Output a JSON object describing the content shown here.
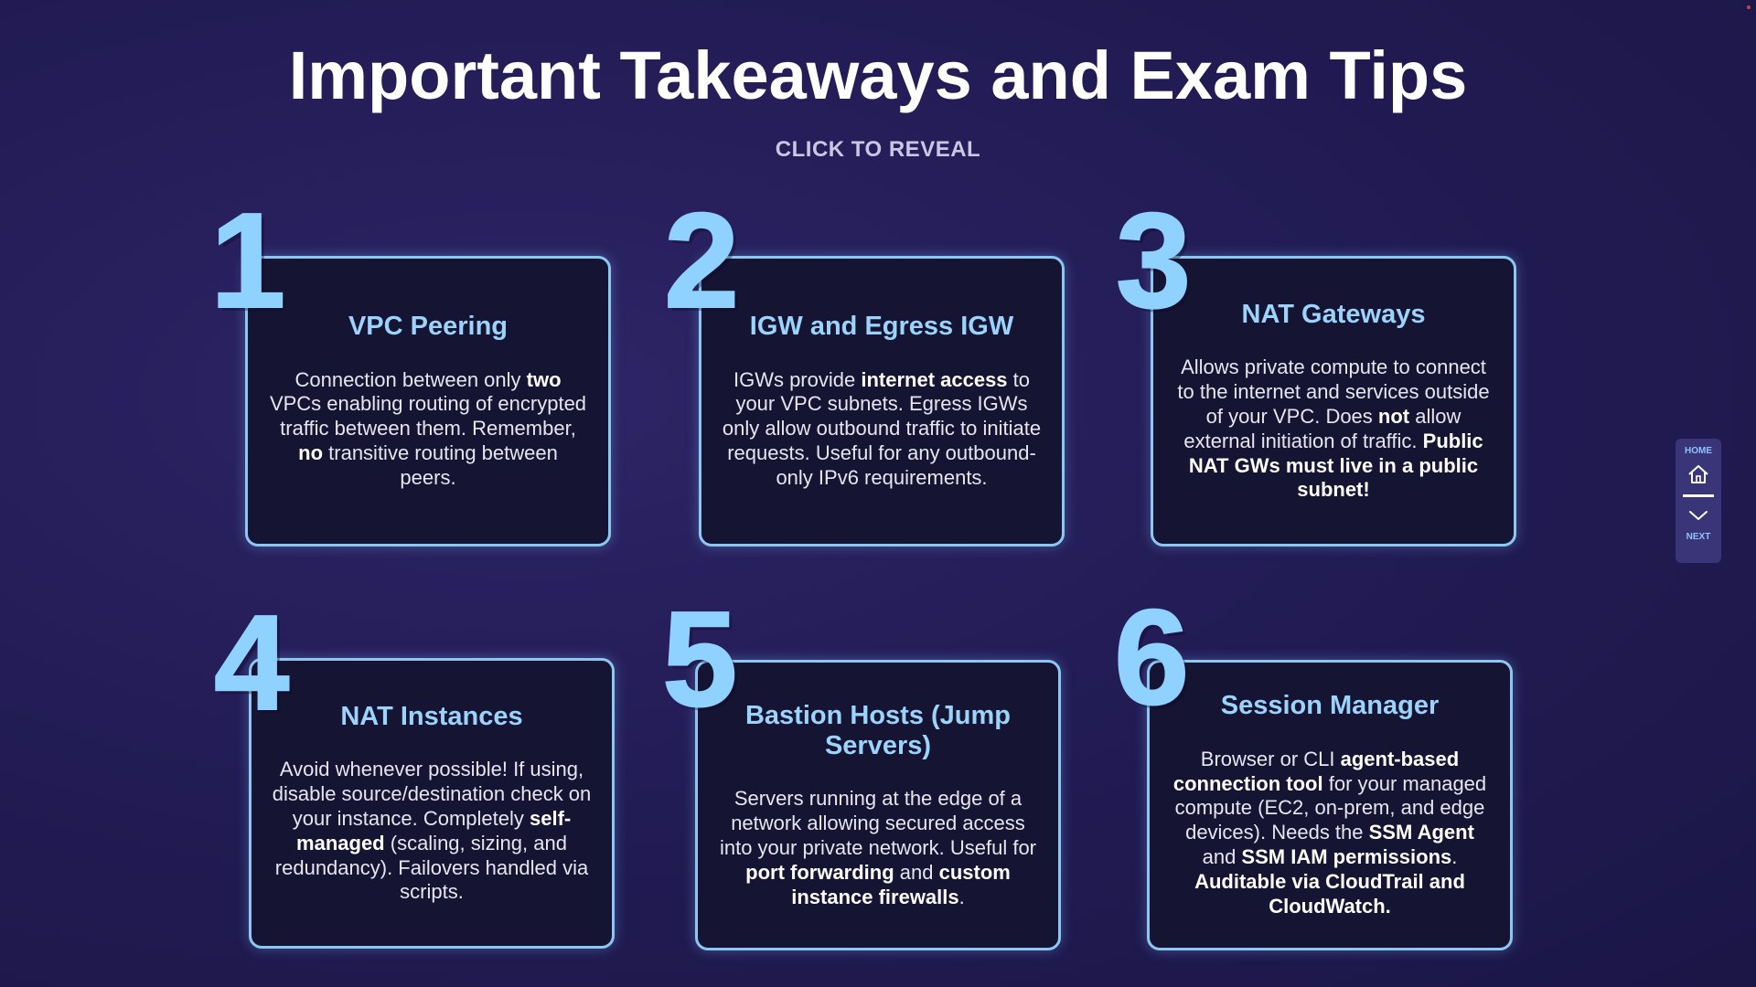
{
  "header": {
    "title": "Important Takeaways and Exam Tips",
    "subtitle": "CLICK TO REVEAL"
  },
  "cards": [
    {
      "number": "1",
      "title": "VPC Peering",
      "body": [
        {
          "t": "Connection between only "
        },
        {
          "t": "two",
          "b": true
        },
        {
          "t": " VPCs enabling routing of encrypted traffic between them. Remember, "
        },
        {
          "t": "no",
          "b": true
        },
        {
          "t": " transitive routing between peers."
        }
      ]
    },
    {
      "number": "2",
      "title": "IGW and Egress IGW",
      "body": [
        {
          "t": "IGWs provide "
        },
        {
          "t": "internet access",
          "b": true
        },
        {
          "t": " to your VPC subnets. Egress IGWs only allow outbound traffic to initiate requests. Useful for any outbound-only IPv6 requirements."
        }
      ]
    },
    {
      "number": "3",
      "title": "NAT Gateways",
      "body": [
        {
          "t": "Allows private compute to connect to the internet and services outside of your VPC. Does "
        },
        {
          "t": "not",
          "b": true
        },
        {
          "t": " allow external initiation of traffic. "
        },
        {
          "t": "Public NAT GWs must live in a public subnet!",
          "b": true
        }
      ]
    },
    {
      "number": "4",
      "title": "NAT Instances",
      "body": [
        {
          "t": "Avoid whenever possible! If using, disable source/destination check on your instance. Completely "
        },
        {
          "t": "self-managed",
          "b": true
        },
        {
          "t": " (scaling, sizing, and redundancy). Failovers handled via scripts."
        }
      ]
    },
    {
      "number": "5",
      "title": "Bastion Hosts (Jump Servers)",
      "body": [
        {
          "t": "Servers running at the edge of a network allowing secured access into your private network. Useful for "
        },
        {
          "t": "port forwarding",
          "b": true
        },
        {
          "t": " and "
        },
        {
          "t": "custom instance firewalls",
          "b": true
        },
        {
          "t": "."
        }
      ]
    },
    {
      "number": "6",
      "title": "Session Manager",
      "body": [
        {
          "t": "Browser or CLI "
        },
        {
          "t": "agent-based connection tool",
          "b": true
        },
        {
          "t": " for your managed compute (EC2, on-prem, and edge devices). Needs the "
        },
        {
          "t": "SSM Agent",
          "b": true
        },
        {
          "t": " and "
        },
        {
          "t": "SSM IAM permissions",
          "b": true
        },
        {
          "t": ". "
        },
        {
          "t": "Auditable via CloudTrail and CloudWatch.",
          "b": true
        }
      ]
    }
  ],
  "nav": {
    "home_label": "HOME",
    "next_label": "NEXT",
    "home_icon": "home-icon",
    "next_icon": "chevron-down-icon"
  },
  "colors": {
    "accent": "#8fd1ff",
    "card_bg": "#161433",
    "background": "#231c56"
  }
}
